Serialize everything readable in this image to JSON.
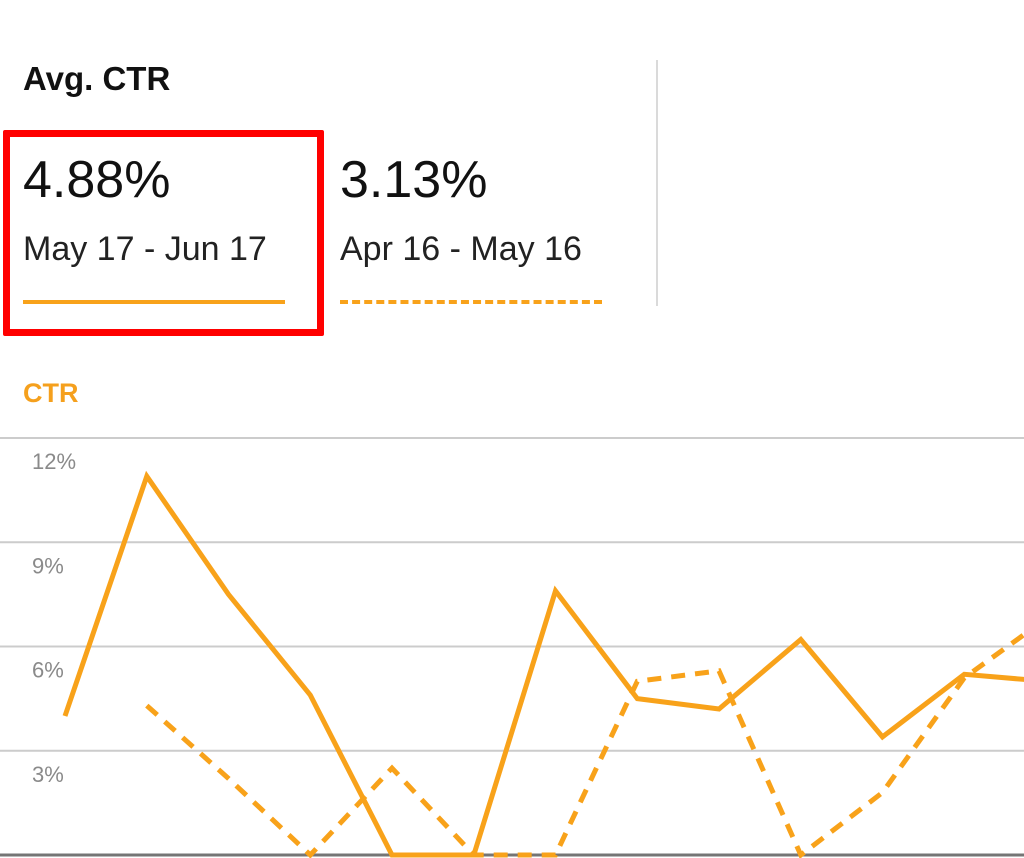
{
  "card": {
    "title": "Avg. CTR",
    "periods": [
      {
        "value": "4.88%",
        "range": "May 17 - Jun 17",
        "line_style": "solid",
        "selected": true
      },
      {
        "value": "3.13%",
        "range": "Apr 16 - May 16",
        "line_style": "dashed",
        "selected": false
      }
    ]
  },
  "colors": {
    "series": "#f8a21a",
    "highlight": "#ff0000",
    "grid": "#cccccc",
    "axis_label": "#8a8a8a"
  },
  "chart_data": {
    "type": "line",
    "title": "CTR",
    "ylim": [
      0,
      12
    ],
    "y_ticks": [
      {
        "value": 12,
        "label": "12%"
      },
      {
        "value": 9,
        "label": "9%"
      },
      {
        "value": 6,
        "label": "6%"
      },
      {
        "value": 3,
        "label": "3%"
      }
    ],
    "x": [
      0,
      1,
      2,
      3,
      4,
      5,
      6,
      7,
      8,
      9,
      10,
      11,
      12
    ],
    "grid": true,
    "series": [
      {
        "style": "solid",
        "values": [
          4.0,
          10.9,
          7.5,
          4.6,
          0.0,
          0.0,
          7.6,
          4.5,
          4.2,
          6.2,
          3.4,
          5.2,
          5.0
        ]
      },
      {
        "style": "dashed",
        "values": [
          null,
          4.3,
          2.2,
          0.0,
          2.5,
          0.0,
          0.0,
          5.0,
          5.3,
          0.0,
          1.8,
          5.1,
          6.8
        ]
      }
    ]
  }
}
